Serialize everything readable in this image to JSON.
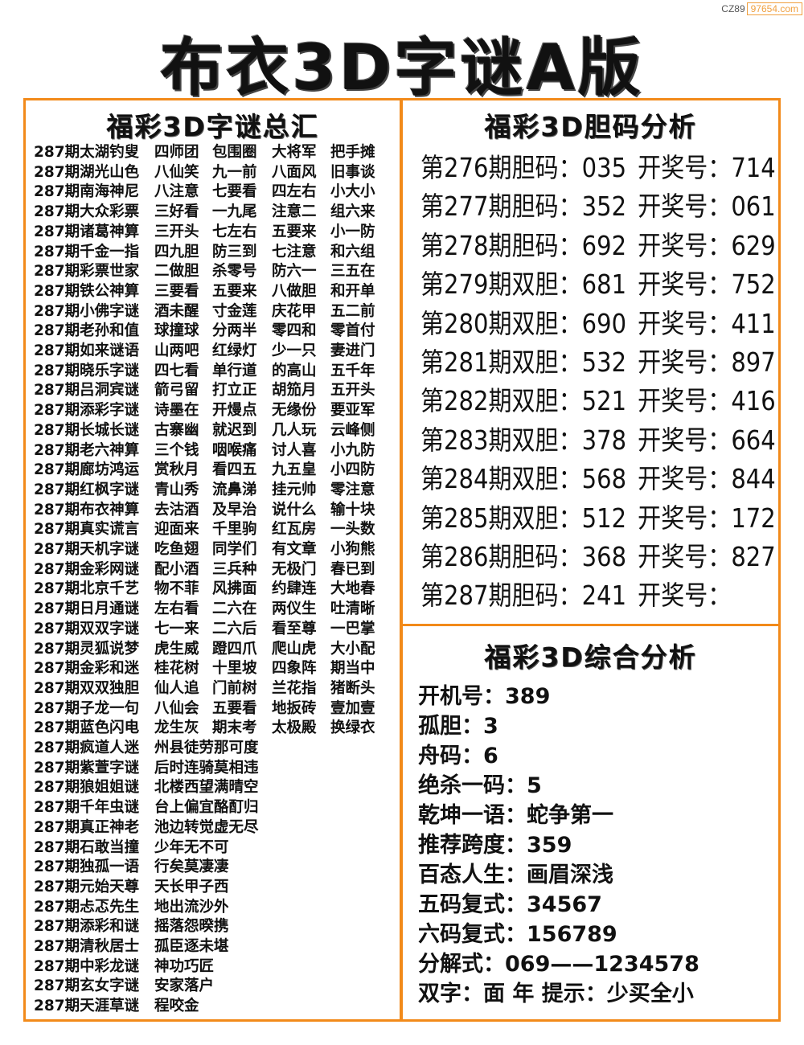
{
  "watermark": {
    "prefix": "CZ89",
    "site": "97654.com"
  },
  "title": "布衣3D字谜A版",
  "left": {
    "heading": "福彩3D字谜总汇",
    "rows": [
      [
        "287期太湖钓叟",
        "四师团",
        "包围圈",
        "大将军",
        "把手摊"
      ],
      [
        "287期湖光山色",
        "八仙笑",
        "九一前",
        "八面风",
        "旧事谈"
      ],
      [
        "287期南海神尼",
        "八注意",
        "七要看",
        "四左右",
        "小大小"
      ],
      [
        "287期大众彩票",
        "三好看",
        "一九尾",
        "注意二",
        "组六来"
      ],
      [
        "287期诸葛神算",
        "三开头",
        "七左右",
        "五要来",
        "小一防"
      ],
      [
        "287期千金一指",
        "四九胆",
        "防三到",
        "七注意",
        "和六组"
      ],
      [
        "287期彩票世家",
        "二做胆",
        "杀零号",
        "防六一",
        "三五在"
      ],
      [
        "287期铁公神算",
        "三要看",
        "五要来",
        "八做胆",
        "和开单"
      ],
      [
        "287期小佛字谜",
        "酒未醒",
        "寸金莲",
        "庆花甲",
        "五二前"
      ],
      [
        "287期老孙和值",
        "球撞球",
        "分两半",
        "零四和",
        "零首付"
      ],
      [
        "287期如来谜语",
        "山两吧",
        "红绿灯",
        "少一只",
        "妻进门"
      ],
      [
        "287期晓乐字谜",
        "四七看",
        "单行道",
        "的高山",
        "五千年"
      ],
      [
        "287期吕洞宾谜",
        "箭弓留",
        "打立正",
        "胡笳月",
        "五开头"
      ],
      [
        "287期添彩字谜",
        "诗墨在",
        "开熳点",
        "无缘份",
        "要亚军"
      ],
      [
        "287期长城长谜",
        "古寨幽",
        "就迟到",
        "几人玩",
        "云峰侧"
      ],
      [
        "287期老六神算",
        "三个钱",
        "咽喉痛",
        "讨人喜",
        "小九防"
      ],
      [
        "287期廊坊鸿运",
        "赏秋月",
        "看四五",
        "九五皇",
        "小四防"
      ],
      [
        "287期红枫字谜",
        "青山秀",
        "流鼻涕",
        "挂元帅",
        "零注意"
      ],
      [
        "287期布衣神算",
        "去沽酒",
        "及早治",
        "说什么",
        "输十块"
      ],
      [
        "287期真实谎言",
        "迎面来",
        "千里驹",
        "红瓦房",
        "一头数"
      ],
      [
        "287期天机字谜",
        "吃鱼翅",
        "同学们",
        "有文章",
        "小狗熊"
      ],
      [
        "287期金彩网谜",
        "配小酒",
        "三兵种",
        "无极门",
        "春已到"
      ],
      [
        "287期北京千艺",
        "物不菲",
        "风拂面",
        "约肆连",
        "大地春"
      ],
      [
        "287期日月通谜",
        "左右看",
        "二六在",
        "两仪生",
        "吐清晰"
      ],
      [
        "287期双双字谜",
        "七一来",
        "二六后",
        "看至尊",
        "一巴掌"
      ],
      [
        "287期灵狐说梦",
        "虎生威",
        "蹬四爪",
        "爬山虎",
        "大小配"
      ],
      [
        "287期金彩和迷",
        "桂花树",
        "十里坡",
        "四象阵",
        "期当中"
      ],
      [
        "287期双双独胆",
        "仙人追",
        "门前树",
        "兰花指",
        "猪断头"
      ],
      [
        "287期子龙一句",
        "八仙会",
        "五要看",
        "地扳砖",
        "壹加壹"
      ],
      [
        "287期蓝色闪电",
        "龙生灰",
        "期末考",
        "太极殿",
        "换绿衣"
      ],
      [
        "287期疯道人迷",
        "州县徒劳那可度"
      ],
      [
        "287期紫萱字谜",
        "后时连骑莫相违"
      ],
      [
        "287期狼姐姐谜",
        "北楼西望满晴空"
      ],
      [
        "287期千年虫谜",
        "台上偏宜酪酊归"
      ],
      [
        "287期真正神老",
        "池边转觉虚无尽"
      ],
      [
        "287期石敢当撞",
        "少年无不可"
      ],
      [
        "287期独孤一语",
        "行矣莫凄凄"
      ],
      [
        "287期元始天尊",
        "天长甲子西"
      ],
      [
        "287期忐忑先生",
        "地出流沙外"
      ],
      [
        "287期添彩和谜",
        "摇落怨暌携"
      ],
      [
        "287期清秋居士",
        "孤臣逐未堪"
      ],
      [
        "287期中彩龙谜",
        "神功巧匠"
      ],
      [
        "287期玄女字谜",
        "安家落户"
      ],
      [
        "287期天涯草谜",
        "程咬金"
      ]
    ]
  },
  "dan": {
    "heading": "福彩3D胆码分析",
    "rows": [
      {
        "label": "第276期胆码：",
        "code": "035",
        "prize_label": "开奖号：",
        "prize": "714"
      },
      {
        "label": "第277期胆码：",
        "code": "352",
        "prize_label": "开奖号：",
        "prize": "061"
      },
      {
        "label": "第278期胆码：",
        "code": "692",
        "prize_label": "开奖号：",
        "prize": "629"
      },
      {
        "label": "第279期双胆：",
        "code": "681",
        "prize_label": "开奖号：",
        "prize": "752"
      },
      {
        "label": "第280期双胆：",
        "code": "690",
        "prize_label": "开奖号：",
        "prize": "411"
      },
      {
        "label": "第281期双胆：",
        "code": "532",
        "prize_label": "开奖号：",
        "prize": "897"
      },
      {
        "label": "第282期双胆：",
        "code": "521",
        "prize_label": "开奖号：",
        "prize": "416"
      },
      {
        "label": "第283期双胆：",
        "code": "378",
        "prize_label": "开奖号：",
        "prize": "664"
      },
      {
        "label": "第284期双胆：",
        "code": "568",
        "prize_label": "开奖号：",
        "prize": "844"
      },
      {
        "label": "第285期双胆：",
        "code": "512",
        "prize_label": "开奖号：",
        "prize": "172"
      },
      {
        "label": "第286期胆码：",
        "code": "368",
        "prize_label": "开奖号：",
        "prize": "827"
      },
      {
        "label": "第287期胆码：",
        "code": "241",
        "prize_label": "开奖号：",
        "prize": ""
      }
    ]
  },
  "summary": {
    "heading": "福彩3D综合分析",
    "rows": [
      "开机号：389",
      "孤胆：3",
      "舟码：6",
      "绝杀一码：5",
      "乾坤一语：蛇争第一",
      "推荐跨度：359",
      "百态人生：画眉深浅",
      "五码复式：34567",
      "六码复式：156789",
      "分解式：069——1234578",
      "双字：面 年 提示：少买全小"
    ]
  },
  "colors": {
    "border": "#f28a1a"
  }
}
